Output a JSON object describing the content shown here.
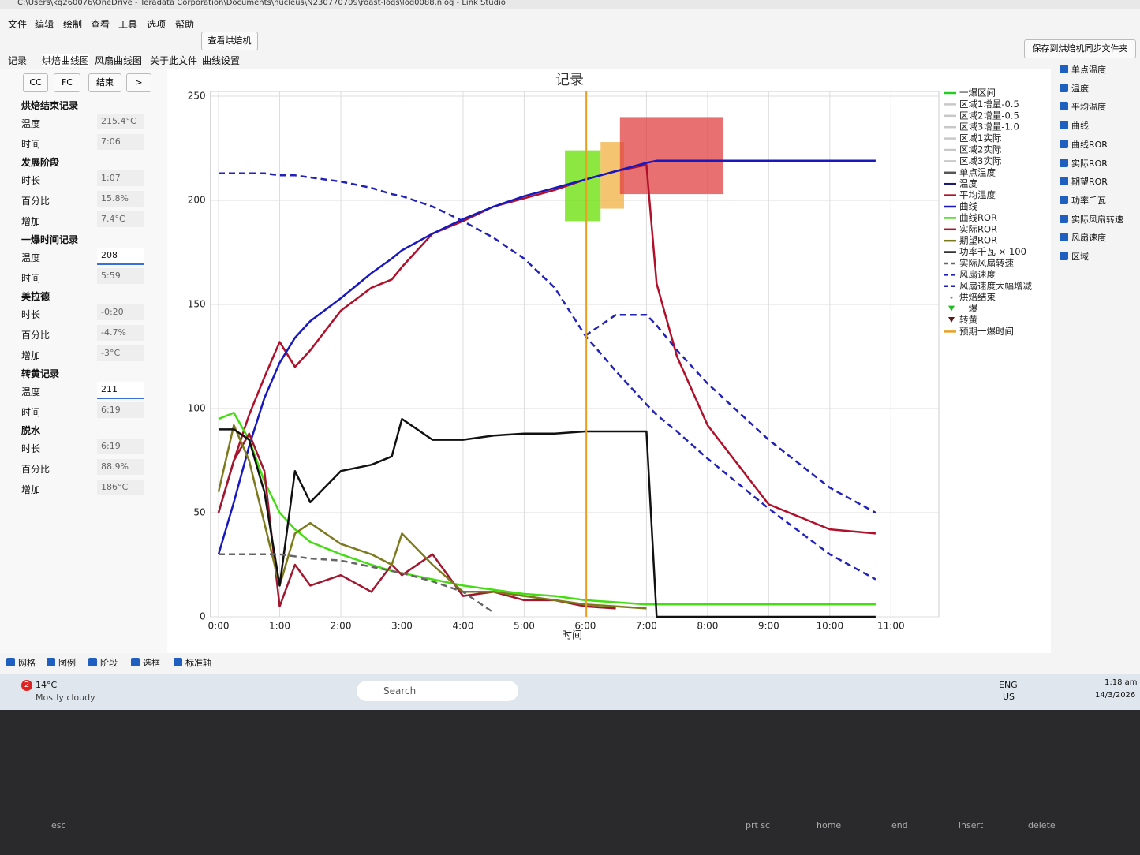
{
  "window": {
    "title": "C:\\Users\\kg260076\\OneDrive - Teradata Corporation\\Documents\\nucleus\\N230770709\\roast-logs\\log0088.nlog - Link Studio"
  },
  "menu": [
    "文件",
    "编辑",
    "绘制",
    "查看",
    "工具",
    "选项",
    "帮助"
  ],
  "toolbar": {
    "button": "查看烘焙机"
  },
  "tabs": [
    "记录",
    "烘焙曲线图",
    "风扇曲线图",
    "关于此文件",
    "曲线设置"
  ],
  "save_button": "保存到烘焙机同步文件夹",
  "buttons": [
    "CC",
    "FC",
    "结束",
    ">"
  ],
  "panel": [
    {
      "heading": "烘焙结束记录",
      "rows": [
        {
          "label": "温度",
          "value": "215.4°C"
        },
        {
          "label": "时间",
          "value": "7:06"
        }
      ]
    },
    {
      "heading": "发展阶段",
      "rows": [
        {
          "label": "时长",
          "value": "1:07"
        },
        {
          "label": "百分比",
          "value": "15.8%"
        },
        {
          "label": "增加",
          "value": "7.4°C"
        }
      ]
    },
    {
      "heading": "一爆时间记录",
      "rows": [
        {
          "label": "温度",
          "value": "208",
          "editable": true
        },
        {
          "label": "时间",
          "value": "5:59"
        }
      ]
    },
    {
      "heading": "美拉德",
      "rows": [
        {
          "label": "时长",
          "value": "-0:20"
        },
        {
          "label": "百分比",
          "value": "-4.7%"
        },
        {
          "label": "增加",
          "value": "-3°C"
        }
      ]
    },
    {
      "heading": "转黄记录",
      "rows": [
        {
          "label": "温度",
          "value": "211",
          "editable": true
        },
        {
          "label": "时间",
          "value": "6:19"
        }
      ]
    },
    {
      "heading": "脱水",
      "rows": [
        {
          "label": "时长",
          "value": "6:19"
        },
        {
          "label": "百分比",
          "value": "88.9%"
        },
        {
          "label": "增加",
          "value": "186°C"
        }
      ]
    }
  ],
  "toggles": [
    "单点温度",
    "温度",
    "平均温度",
    "曲线",
    "曲线ROR",
    "实际ROR",
    "期望ROR",
    "功率千瓦",
    "实际风扇转速",
    "风扇速度",
    "区域"
  ],
  "options": [
    "网格",
    "图例",
    "阶段",
    "选框",
    "标准轴"
  ],
  "taskbar": {
    "badge": "2",
    "temperature": "14°C",
    "weather": "Mostly cloudy",
    "search": "Search",
    "language": [
      "ENG",
      "US"
    ],
    "clock": [
      "1:18 am",
      "14/3/2026"
    ]
  },
  "keyboard": [
    "esc",
    "prt sc",
    "home",
    "end",
    "insert",
    "delete"
  ],
  "chart_data": {
    "type": "line",
    "title": "记录",
    "x_label": "时间",
    "xlim": [
      -8,
      707
    ],
    "ylim": [
      0,
      250
    ],
    "xticks": [
      {
        "value": 0,
        "label": "0:00"
      },
      {
        "value": 60,
        "label": "1:00"
      },
      {
        "value": 120,
        "label": "2:00"
      },
      {
        "value": 180,
        "label": "3:00"
      },
      {
        "value": 240,
        "label": "4:00"
      },
      {
        "value": 300,
        "label": "5:00"
      },
      {
        "value": 360,
        "label": "6:00"
      },
      {
        "value": 420,
        "label": "7:00"
      },
      {
        "value": 480,
        "label": "8:00"
      },
      {
        "value": 540,
        "label": "9:00"
      },
      {
        "value": 600,
        "label": "10:00"
      },
      {
        "value": 660,
        "label": "11:00"
      }
    ],
    "yticks": [
      0,
      50,
      100,
      150,
      200,
      250
    ],
    "grid": true,
    "x": [
      0,
      15,
      30,
      45,
      60,
      75,
      90,
      120,
      150,
      170,
      180,
      210,
      240,
      270,
      300,
      330,
      360,
      390,
      420,
      430,
      450,
      480,
      540,
      600,
      645
    ],
    "zones": [
      {
        "x": [
          340,
          375
        ],
        "y": [
          190,
          224
        ],
        "color": "#66e000"
      },
      {
        "x": [
          375,
          398
        ],
        "y": [
          196,
          228
        ],
        "color": "#f0b040"
      },
      {
        "x": [
          394,
          495
        ],
        "y": [
          203,
          240
        ],
        "color": "#e04040"
      }
    ],
    "series": [
      {
        "name": "一爆区间",
        "color": "#22cc22",
        "style": "line"
      },
      {
        "name": "区域1增量-0.5",
        "color": "#c8c8c8",
        "style": "line"
      },
      {
        "name": "区域2增量-0.5",
        "color": "#c8c8c8",
        "style": "line"
      },
      {
        "name": "区域3增量-1.0",
        "color": "#c8c8c8",
        "style": "line"
      },
      {
        "name": "区域1实际",
        "color": "#c8c8c8",
        "style": "line"
      },
      {
        "name": "区域2实际",
        "color": "#c8c8c8",
        "style": "line"
      },
      {
        "name": "区域3实际",
        "color": "#c8c8c8",
        "style": "line"
      },
      {
        "name": "单点温度",
        "color": "#555555",
        "style": "line"
      },
      {
        "name": "温度",
        "color": "#1a1a6e",
        "style": "line"
      },
      {
        "name": "平均温度",
        "color": "#b0102a",
        "style": "line",
        "values": [
          50,
          75,
          97,
          115,
          132,
          120,
          128,
          147,
          158,
          162,
          168,
          184,
          190,
          197,
          201,
          205,
          210,
          214,
          217,
          160,
          125,
          92,
          54,
          42,
          40
        ]
      },
      {
        "name": "曲线",
        "color": "#1818c0",
        "style": "line",
        "values": [
          30,
          55,
          82,
          105,
          122,
          134,
          142,
          153,
          165,
          172,
          176,
          184,
          191,
          197,
          202,
          206,
          210,
          214,
          218,
          219,
          219,
          219,
          219,
          219,
          219
        ]
      },
      {
        "name": "曲线ROR",
        "color": "#44dd11",
        "style": "line",
        "values": [
          95,
          98,
          85,
          65,
          50,
          42,
          36,
          30,
          25,
          22,
          21,
          18,
          15,
          13,
          11,
          10,
          8,
          7,
          6,
          6,
          6,
          6,
          6,
          6,
          6
        ]
      },
      {
        "name": "实际ROR",
        "color": "#a01830",
        "style": "line",
        "values": [
          50,
          75,
          88,
          70,
          5,
          25,
          15,
          20,
          12,
          25,
          20,
          30,
          10,
          12,
          8,
          8,
          5,
          4,
          null,
          null,
          null,
          null,
          null,
          null,
          null
        ]
      },
      {
        "name": "期望ROR",
        "color": "#7d7a1c",
        "style": "line",
        "values": [
          60,
          92,
          75,
          45,
          15,
          40,
          45,
          35,
          30,
          25,
          40,
          25,
          12,
          12,
          10,
          8,
          6,
          5,
          4,
          null,
          null,
          null,
          null,
          null,
          null
        ]
      },
      {
        "name": "功率千瓦 × 100",
        "color": "#111111",
        "style": "line",
        "values": [
          90,
          90,
          85,
          60,
          15,
          70,
          55,
          70,
          73,
          77,
          95,
          85,
          85,
          87,
          88,
          88,
          89,
          89,
          89,
          0,
          0,
          0,
          0,
          0,
          0
        ]
      },
      {
        "name": "实际风扇转速",
        "color": "#666666",
        "style": "dashed",
        "values": [
          30,
          30,
          30,
          30,
          30,
          29,
          28,
          27,
          24,
          22,
          21,
          17,
          12,
          2,
          null,
          null,
          null,
          null,
          null,
          null,
          null,
          null,
          null,
          null,
          null
        ]
      },
      {
        "name": "风扇速度",
        "color": "#2222bb",
        "style": "dashed",
        "values": [
          213,
          213,
          213,
          213,
          212,
          212,
          211,
          209,
          206,
          203,
          202,
          197,
          190,
          182,
          172,
          158,
          135,
          118,
          102,
          97,
          89,
          76,
          52,
          30,
          18
        ]
      },
      {
        "name": "风扇速度大幅增减",
        "color": "#2222bb",
        "style": "dashed",
        "values": [
          null,
          null,
          null,
          null,
          null,
          null,
          null,
          null,
          null,
          null,
          null,
          null,
          null,
          null,
          null,
          null,
          135,
          145,
          145,
          140,
          128,
          112,
          85,
          62,
          50
        ]
      },
      {
        "name": "烘焙结束",
        "color": "#888888",
        "style": "dot"
      },
      {
        "name": "一爆",
        "color": "#22bb22",
        "style": "triangle"
      },
      {
        "name": "转黄",
        "color": "#5a1a1a",
        "style": "triangle"
      },
      {
        "name": "预期一爆时间",
        "color": "#e8a020",
        "style": "line",
        "at": 361
      }
    ]
  }
}
